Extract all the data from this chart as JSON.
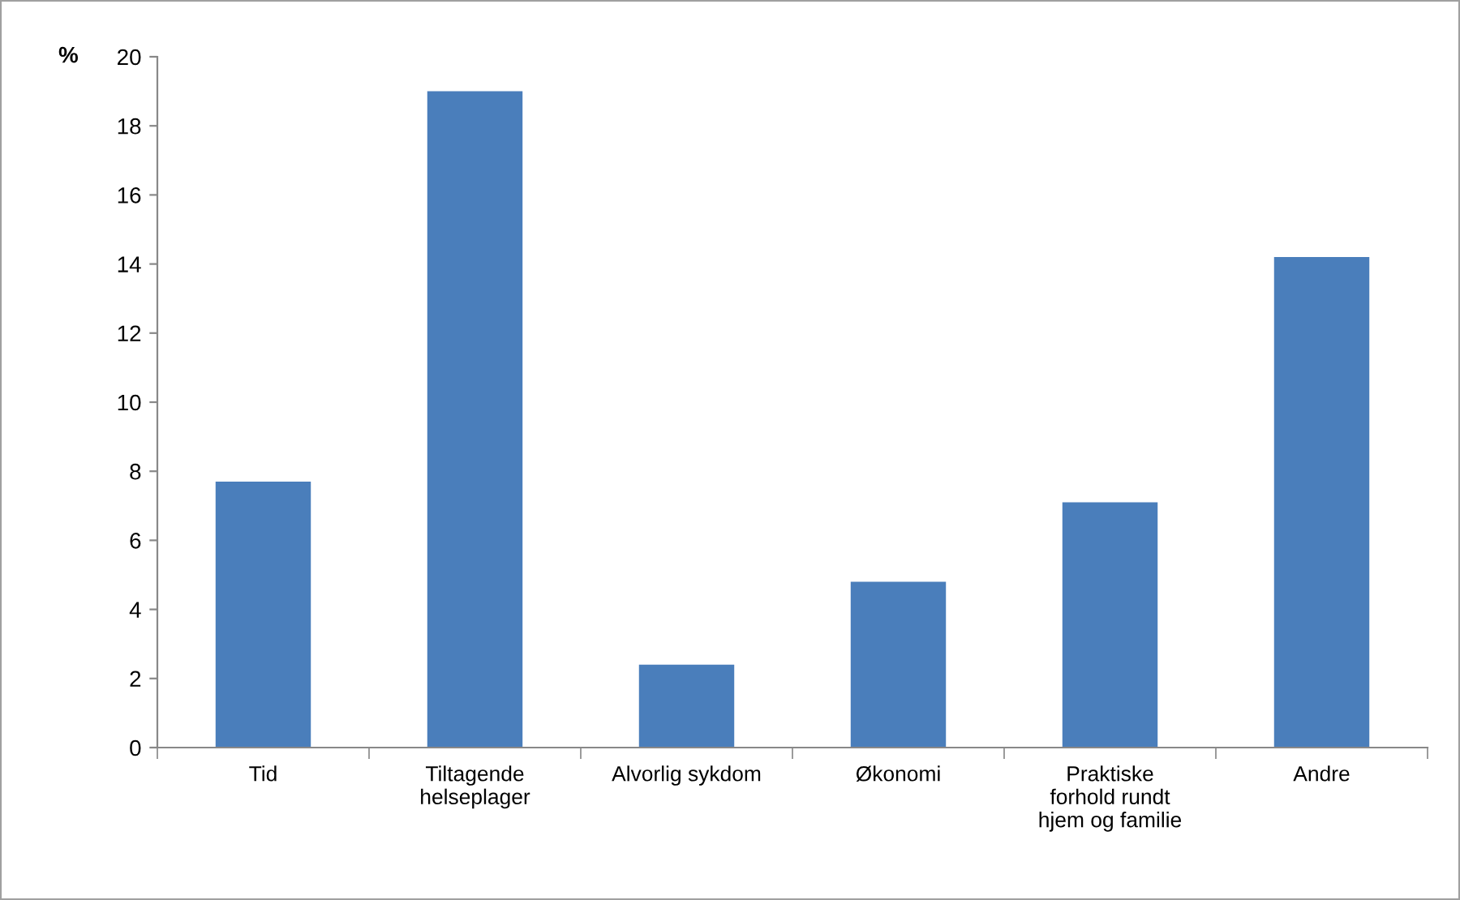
{
  "chart_data": {
    "type": "bar",
    "ylabel": "%",
    "categories": [
      "Tid",
      "Tiltagende\nhelseplager",
      "Alvorlig sykdom",
      "Økonomi",
      "Praktiske\nforhold rundt\nhjem og familie",
      "Andre"
    ],
    "values": [
      7.7,
      19.0,
      2.4,
      4.8,
      7.1,
      14.2
    ],
    "color": "#4a7ebb",
    "ylim": [
      0,
      20
    ],
    "yticks": [
      0,
      2,
      4,
      6,
      8,
      10,
      12,
      14,
      16,
      18,
      20
    ],
    "grid": false
  }
}
